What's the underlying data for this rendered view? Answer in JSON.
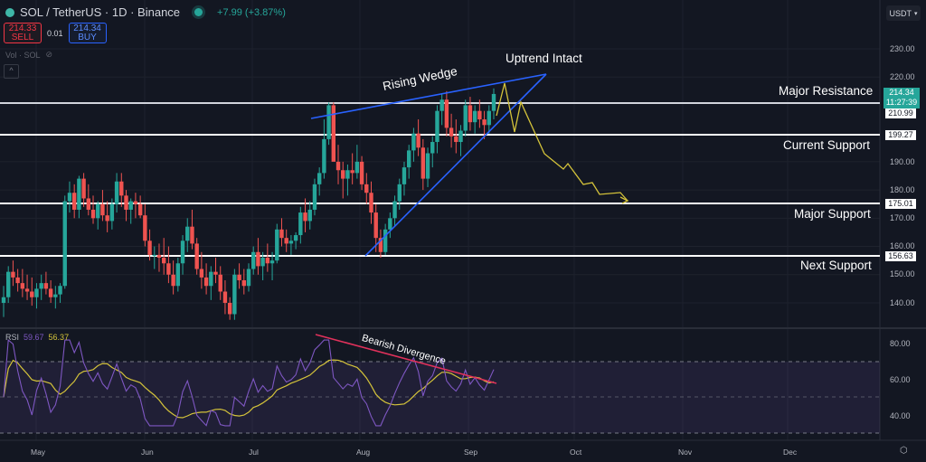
{
  "header": {
    "symbol": "SOL / TetherUS · 1D · Binance",
    "change": "+7.99 (+3.87%)",
    "sell_price": "214.33",
    "sell_label": "SELL",
    "spread": "0.01",
    "buy_price": "214.34",
    "buy_label": "BUY",
    "volume_label": "Vol · SOL",
    "currency": "USDT",
    "collapse_glyph": "^"
  },
  "price_axis": {
    "ticks": [
      "230.00",
      "220.00",
      "190.00",
      "180.00",
      "170.00",
      "160.00",
      "150.00",
      "140.00"
    ],
    "current_price": "214.34",
    "countdown": "11:27:39"
  },
  "levels": [
    {
      "label": "Major Resistance",
      "value": "210.99"
    },
    {
      "label": "Current Support",
      "value": "199.27"
    },
    {
      "label": "Major Support",
      "value": "175.01"
    },
    {
      "label": "Next Support",
      "value": "156.63"
    }
  ],
  "annotations": {
    "uptrend": "Uptrend Intact",
    "wedge": "Rising Wedge",
    "divergence": "Bearish Divergence"
  },
  "rsi": {
    "label": "RSI",
    "value": "59.67",
    "ma_value": "56.37",
    "ticks": [
      "80.00",
      "60.00",
      "40.00"
    ]
  },
  "time_axis": {
    "labels": [
      "May",
      "Jun",
      "Jul",
      "Aug",
      "Sep",
      "Oct",
      "Nov",
      "Dec"
    ]
  },
  "colors": {
    "background": "#131722",
    "up": "#26a69a",
    "down": "#ef5350",
    "wedge": "#2962ff",
    "projection": "#d4c33a",
    "rsi": "#7e57c2",
    "rsi_ma": "#d4c33a",
    "divergence": "#e0315b"
  },
  "chart_data": [
    {
      "type": "candlestick",
      "title": "SOL / TetherUS · 1D · Binance",
      "x_range": [
        "Apr",
        "Sep"
      ],
      "ylim": [
        132,
        236
      ],
      "horizontal_levels": [
        210.99,
        199.27,
        175.01,
        156.63
      ],
      "candles": [
        [
          140,
          146,
          135,
          142
        ],
        [
          142,
          153,
          140,
          151
        ],
        [
          151,
          155,
          146,
          149
        ],
        [
          149,
          152,
          144,
          147
        ],
        [
          147,
          152,
          142,
          145
        ],
        [
          145,
          150,
          141,
          144
        ],
        [
          144,
          149,
          139,
          142
        ],
        [
          142,
          147,
          138,
          145
        ],
        [
          145,
          150,
          141,
          147
        ],
        [
          147,
          151,
          143,
          145
        ],
        [
          145,
          148,
          140,
          142
        ],
        [
          142,
          146,
          138,
          143
        ],
        [
          143,
          147,
          140,
          146
        ],
        [
          146,
          178,
          145,
          176
        ],
        [
          176,
          183,
          172,
          179
        ],
        [
          179,
          182,
          170,
          173
        ],
        [
          173,
          185,
          170,
          184
        ],
        [
          184,
          186,
          174,
          177
        ],
        [
          177,
          182,
          171,
          173
        ],
        [
          173,
          178,
          168,
          170
        ],
        [
          170,
          176,
          166,
          175
        ],
        [
          175,
          180,
          169,
          171
        ],
        [
          171,
          176,
          165,
          169
        ],
        [
          169,
          177,
          166,
          175
        ],
        [
          175,
          186,
          172,
          183
        ],
        [
          183,
          186,
          174,
          178
        ],
        [
          178,
          180,
          169,
          173
        ],
        [
          173,
          177,
          168,
          176
        ],
        [
          176,
          179,
          170,
          175
        ],
        [
          175,
          178,
          170,
          171
        ],
        [
          171,
          175,
          160,
          162
        ],
        [
          162,
          166,
          155,
          157
        ],
        [
          157,
          160,
          152,
          157
        ],
        [
          157,
          161,
          151,
          156
        ],
        [
          156,
          163,
          150,
          154
        ],
        [
          154,
          160,
          147,
          150
        ],
        [
          150,
          155,
          143,
          146
        ],
        [
          146,
          156,
          144,
          154
        ],
        [
          154,
          164,
          150,
          162
        ],
        [
          162,
          170,
          158,
          167
        ],
        [
          167,
          173,
          159,
          161
        ],
        [
          161,
          163,
          150,
          152
        ],
        [
          152,
          158,
          145,
          149
        ],
        [
          149,
          154,
          143,
          146
        ],
        [
          146,
          153,
          141,
          151
        ],
        [
          151,
          156,
          147,
          150
        ],
        [
          150,
          153,
          141,
          144
        ],
        [
          144,
          148,
          136,
          140
        ],
        [
          140,
          142,
          134,
          136
        ],
        [
          136,
          152,
          134,
          150
        ],
        [
          150,
          154,
          145,
          148
        ],
        [
          148,
          152,
          143,
          146
        ],
        [
          146,
          154,
          144,
          152
        ],
        [
          152,
          160,
          150,
          158
        ],
        [
          158,
          163,
          150,
          153
        ],
        [
          153,
          158,
          148,
          156
        ],
        [
          156,
          161,
          151,
          154
        ],
        [
          154,
          158,
          148,
          155
        ],
        [
          155,
          168,
          154,
          166
        ],
        [
          166,
          170,
          160,
          163
        ],
        [
          163,
          166,
          158,
          161
        ],
        [
          161,
          164,
          157,
          162
        ],
        [
          162,
          165,
          159,
          164
        ],
        [
          164,
          174,
          161,
          172
        ],
        [
          172,
          177,
          165,
          169
        ],
        [
          169,
          176,
          166,
          173
        ],
        [
          173,
          184,
          171,
          182
        ],
        [
          182,
          188,
          178,
          186
        ],
        [
          186,
          205,
          184,
          198
        ],
        [
          198,
          211,
          196,
          210
        ],
        [
          210,
          211,
          195,
          190
        ],
        [
          190,
          196,
          182,
          187
        ],
        [
          187,
          190,
          177,
          184
        ],
        [
          184,
          189,
          178,
          187
        ],
        [
          187,
          193,
          182,
          186
        ],
        [
          186,
          196,
          184,
          190
        ],
        [
          190,
          192,
          180,
          182
        ],
        [
          182,
          186,
          175,
          179
        ],
        [
          179,
          183,
          168,
          172
        ],
        [
          172,
          175,
          158,
          163
        ],
        [
          163,
          166,
          156,
          158
        ],
        [
          158,
          168,
          157,
          166
        ],
        [
          166,
          172,
          163,
          170
        ],
        [
          170,
          178,
          167,
          176
        ],
        [
          176,
          184,
          173,
          182
        ],
        [
          182,
          190,
          178,
          188
        ],
        [
          188,
          196,
          184,
          194
        ],
        [
          194,
          202,
          190,
          200
        ],
        [
          200,
          205,
          192,
          195
        ],
        [
          195,
          198,
          180,
          184
        ],
        [
          184,
          195,
          181,
          193
        ],
        [
          193,
          199,
          188,
          197
        ],
        [
          197,
          210,
          193,
          208
        ],
        [
          208,
          214,
          203,
          212
        ],
        [
          212,
          215,
          199,
          202
        ],
        [
          202,
          207,
          195,
          199
        ],
        [
          199,
          205,
          193,
          197
        ],
        [
          197,
          203,
          192,
          201
        ],
        [
          201,
          212,
          199,
          210
        ],
        [
          210,
          213,
          201,
          204
        ],
        [
          204,
          210,
          200,
          208
        ],
        [
          208,
          212,
          202,
          205
        ],
        [
          205,
          208,
          198,
          203
        ],
        [
          203,
          210,
          200,
          208
        ],
        [
          208,
          216,
          205,
          214
        ]
      ],
      "projection_path": [
        [
          549,
          128
        ],
        [
          558,
          92
        ],
        [
          569,
          146
        ],
        [
          576,
          113
        ],
        [
          602,
          170
        ],
        [
          623,
          187
        ],
        [
          628,
          181
        ],
        [
          645,
          204
        ],
        [
          655,
          202
        ],
        [
          663,
          215
        ],
        [
          686,
          213
        ],
        [
          694,
          222
        ]
      ],
      "wedge_upper": [
        [
          344,
          131
        ],
        [
          604,
          82
        ]
      ],
      "wedge_lower": [
        [
          404,
          283
        ],
        [
          604,
          82
        ]
      ]
    },
    {
      "type": "line",
      "title": "RSI",
      "ylim": [
        30,
        85
      ],
      "series": [
        {
          "name": "RSI",
          "last": 59.67
        },
        {
          "name": "RSI MA",
          "last": 56.37
        }
      ],
      "bands": [
        70,
        50,
        30
      ],
      "divergence_line": [
        [
          349,
          370
        ],
        [
          549,
          424
        ]
      ]
    }
  ]
}
